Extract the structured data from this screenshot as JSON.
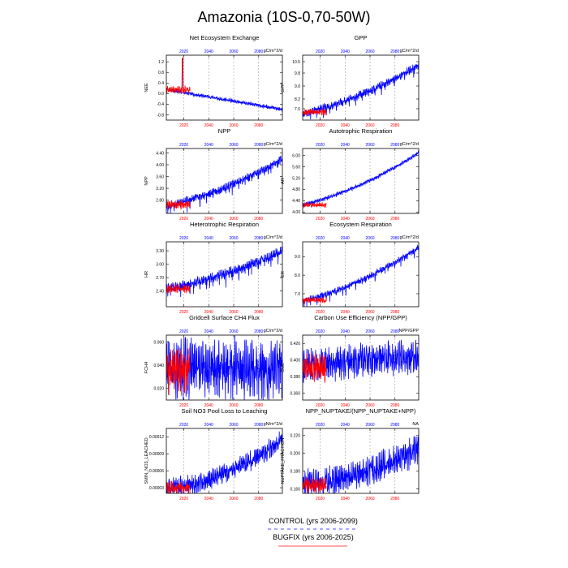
{
  "colors": {
    "control": "#0000ff",
    "bugfix": "#ff0000",
    "grid": "#888888"
  },
  "page_title": "Amazonia (10S-0,70-50W)",
  "legend": {
    "control_label": "CONTROL (yrs 2006-2099)",
    "bugfix_label": "BUGFIX (yrs 2006-2025)"
  },
  "chart_data": [
    {
      "type": "line",
      "title": "Net Ecosystem Exchange",
      "ylabel": "NEE",
      "units": "gC/m^2/d",
      "yticks": [
        "1.2",
        "0.8",
        "0.4",
        "0.0",
        "-0.4",
        "-0.8"
      ],
      "ytick_values": [
        1.2,
        0.8,
        0.4,
        0,
        -0.4,
        -0.8
      ],
      "ylim": [
        -1.0,
        1.45
      ],
      "xlim": [
        2006,
        2099
      ],
      "xticks": [
        "2020",
        "2040",
        "2060",
        "2080"
      ],
      "xtick_values": [
        2020,
        2040,
        2060,
        2080
      ],
      "control": {
        "start": 0.15,
        "end": -0.6,
        "shape": 0,
        "amp": 0.05,
        "spike_year": 2019,
        "spike": 1.3
      },
      "bugfix": {
        "start": 0.15,
        "amp": 0.1,
        "spike_year": 2019,
        "spike": 1.35
      }
    },
    {
      "type": "line",
      "title": "GPP",
      "ylabel": "GPP",
      "units": "gC/m^2/d",
      "yticks": [
        "10.5",
        "9.8",
        "9.0",
        "8.2",
        "7.6"
      ],
      "ytick_values": [
        10.5,
        9.8,
        9.0,
        8.2,
        7.6
      ],
      "ylim": [
        6.9,
        10.9
      ],
      "xlim": [
        2006,
        2099
      ],
      "xticks": [
        "2020",
        "2040",
        "2060",
        "2080"
      ],
      "xtick_values": [
        2020,
        2040,
        2060,
        2080
      ],
      "control": {
        "start": 7.3,
        "end": 10.3,
        "shape": 1.4,
        "amp": 0.18,
        "dip": 0.35
      },
      "bugfix": {
        "start": 7.4,
        "amp": 0.15
      }
    },
    {
      "type": "line",
      "title": "NPP",
      "ylabel": "NPP",
      "units": "gC/m^2/d",
      "yticks": [
        "4.40",
        "4.00",
        "3.60",
        "3.20",
        "2.80"
      ],
      "ytick_values": [
        4.4,
        4.0,
        3.6,
        3.2,
        2.8
      ],
      "ylim": [
        2.35,
        4.55
      ],
      "xlim": [
        2006,
        2099
      ],
      "xticks": [
        "2020",
        "2040",
        "2060",
        "2080"
      ],
      "xtick_values": [
        2020,
        2040,
        2060,
        2080
      ],
      "control": {
        "start": 2.6,
        "end": 4.2,
        "shape": 1.5,
        "amp": 0.1,
        "dip": 0.25
      },
      "bugfix": {
        "start": 2.65,
        "amp": 0.1
      }
    },
    {
      "type": "line",
      "title": "Autotrophic Respiration",
      "ylabel": "AR",
      "units": "gC/m^2/d",
      "yticks": [
        "6.00",
        "5.60",
        "5.20",
        "4.80",
        "4.40",
        "4.00"
      ],
      "ytick_values": [
        6.0,
        5.6,
        5.2,
        4.8,
        4.4,
        4.0
      ],
      "ylim": [
        3.95,
        6.25
      ],
      "xlim": [
        2006,
        2099
      ],
      "xticks": [
        "2020",
        "2040",
        "2060",
        "2080"
      ],
      "xtick_values": [
        2020,
        2040,
        2060,
        2080
      ],
      "control": {
        "start": 4.25,
        "end": 6.1,
        "shape": 1.3,
        "amp": 0.05,
        "dip": 0
      },
      "bugfix": {
        "start": 4.25,
        "amp": 0.06
      }
    },
    {
      "type": "line",
      "title": "Heterotrophic Respiration",
      "ylabel": "HR",
      "units": "gC/m^2/d",
      "yticks": [
        "3.30",
        "3.00",
        "2.70",
        "2.40"
      ],
      "ytick_values": [
        3.3,
        3.0,
        2.7,
        2.4
      ],
      "ylim": [
        2.05,
        3.5
      ],
      "xlim": [
        2006,
        2099
      ],
      "xticks": [
        "2020",
        "2040",
        "2060",
        "2080"
      ],
      "xtick_values": [
        2020,
        2040,
        2060,
        2080
      ],
      "control": {
        "start": 2.45,
        "end": 3.3,
        "shape": 1.6,
        "amp": 0.08,
        "dip": 0.2
      },
      "bugfix": {
        "start": 2.45,
        "amp": 0.07
      }
    },
    {
      "type": "line",
      "title": "Ecosystem Respiration",
      "ylabel": "ER",
      "units": "gC/m^2/d",
      "yticks": [
        "9.0",
        "8.0",
        "7.0"
      ],
      "ytick_values": [
        9.0,
        8.0,
        7.0
      ],
      "ylim": [
        6.3,
        9.8
      ],
      "xlim": [
        2006,
        2099
      ],
      "xticks": [
        "2020",
        "2040",
        "2060",
        "2080"
      ],
      "xtick_values": [
        2020,
        2040,
        2060,
        2080
      ],
      "control": {
        "start": 6.6,
        "end": 9.5,
        "shape": 1.4,
        "amp": 0.12,
        "dip": 0.3
      },
      "bugfix": {
        "start": 6.65,
        "amp": 0.12
      }
    },
    {
      "type": "line",
      "title": "Gridcell Surface CH4 Flux",
      "ylabel": "FCH4",
      "units": "gC/m^2/d",
      "yticks": [
        "0.060",
        "0.040",
        "0.020"
      ],
      "ytick_values": [
        0.06,
        0.04,
        0.02
      ],
      "ylim": [
        0.01,
        0.066
      ],
      "xlim": [
        2006,
        2099
      ],
      "xticks": [
        "2020",
        "2040",
        "2060",
        "2080"
      ],
      "xtick_values": [
        2020,
        2040,
        2060,
        2080
      ],
      "control": {
        "start": 0.038,
        "end": 0.036,
        "shape": 0,
        "amp": 0.018,
        "dip": 0
      },
      "bugfix": {
        "start": 0.036,
        "amp": 0.015
      }
    },
    {
      "type": "line",
      "title": "Carbon Use Efficiency (NPP/GPP)",
      "ylabel": "CUE",
      "units": "NPP/GPP",
      "yticks": [
        "0.420",
        "0.400",
        "0.380",
        "0.360"
      ],
      "ytick_values": [
        0.42,
        0.4,
        0.38,
        0.36
      ],
      "ylim": [
        0.352,
        0.43
      ],
      "xlim": [
        2006,
        2099
      ],
      "xticks": [
        "2020",
        "2040",
        "2060",
        "2080"
      ],
      "xtick_values": [
        2020,
        2040,
        2060,
        2080
      ],
      "control": {
        "start": 0.393,
        "end": 0.405,
        "shape": 0,
        "amp": 0.014,
        "dip": 0
      },
      "bugfix": {
        "start": 0.39,
        "amp": 0.012
      }
    },
    {
      "type": "line",
      "title": "Soil NO3 Pool Loss to Leaching",
      "ylabel": "SMIN_NO3_LEACHED",
      "units": "gN/m^2/d",
      "yticks": [
        "0.00012",
        "0.00009",
        "0.00006",
        "0.00003"
      ],
      "ytick_values": [
        0.00012,
        9e-05,
        6e-05,
        3e-05
      ],
      "ylim": [
        2e-05,
        0.000135
      ],
      "xlim": [
        2006,
        2099
      ],
      "xticks": [
        "2020",
        "2040",
        "2060",
        "2080"
      ],
      "xtick_values": [
        2020,
        2040,
        2060,
        2080
      ],
      "control": {
        "start": 3e-05,
        "end": 0.000115,
        "shape": 0.55,
        "amp": 1.2e-05,
        "dip": 0
      },
      "bugfix": {
        "start": 3e-05,
        "amp": 8e-06
      }
    },
    {
      "type": "line",
      "title": "NPP_NUPTAKE/(NPP_NUPTAKE+NPP)",
      "ylabel": "NUPTAKE_FRACTION",
      "units": "NA",
      "yticks": [
        "0.220",
        "0.200",
        "0.180",
        "0.160"
      ],
      "ytick_values": [
        0.22,
        0.2,
        0.18,
        0.16
      ],
      "ylim": [
        0.155,
        0.228
      ],
      "xlim": [
        2006,
        2099
      ],
      "xticks": [
        "2020",
        "2040",
        "2060",
        "2080"
      ],
      "xtick_values": [
        2020,
        2040,
        2060,
        2080
      ],
      "control": {
        "start": 0.165,
        "end": 0.205,
        "shape": 0.6,
        "amp": 0.012,
        "dip": 0
      },
      "bugfix": {
        "start": 0.165,
        "amp": 0.006
      }
    }
  ]
}
